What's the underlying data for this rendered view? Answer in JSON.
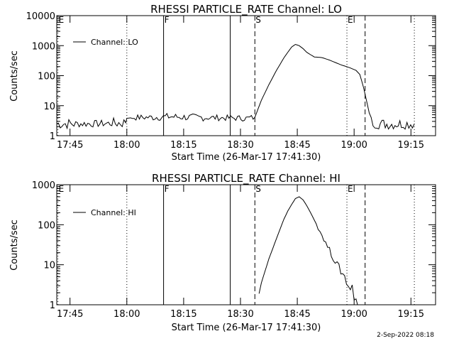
{
  "chart_data": [
    {
      "type": "line",
      "title": "RHESSI PARTICLE_RATE Channel: LO",
      "xlabel": "Start Time (26-Mar-17 17:41:30)",
      "ylabel": "Counts/sec",
      "y_scale": "log",
      "ylim": [
        1,
        10000
      ],
      "y_ticks": [
        "1",
        "10",
        "100",
        "1000",
        "10000"
      ],
      "x_ticks": [
        "17:45",
        "18:00",
        "18:15",
        "18:30",
        "18:45",
        "19:00",
        "19:15"
      ],
      "x_tick_minutes": [
        3.5,
        18.5,
        33.5,
        48.5,
        63.5,
        78.5,
        93.5
      ],
      "xlim_minutes": [
        0,
        100
      ],
      "legend": {
        "label": "Channel: LO",
        "position": "top-left"
      },
      "markers": [
        {
          "label": "E",
          "x": 0.3,
          "style": "dotted"
        },
        {
          "label": "",
          "x": 18.5,
          "style": "dotted"
        },
        {
          "label": "F",
          "x": 28.2,
          "style": "solid"
        },
        {
          "label": "",
          "x": 45.8,
          "style": "solid"
        },
        {
          "label": "S",
          "x": 52.3,
          "style": "dashed"
        },
        {
          "label": "E",
          "x": 76.6,
          "style": "dotted"
        },
        {
          "label": "",
          "x": 81.4,
          "style": "dashed"
        },
        {
          "label": "",
          "x": 94.4,
          "style": "dotted"
        }
      ],
      "series": [
        {
          "name": "Channel: LO",
          "x": [
            0,
            5,
            10,
            15,
            18.2,
            18.5,
            20,
            25,
            30,
            35,
            40,
            45,
            50,
            52.3,
            54,
            56,
            58,
            60,
            62,
            63,
            64,
            65,
            66,
            67,
            68,
            70,
            72,
            74,
            75,
            76,
            77,
            78,
            79,
            80,
            81,
            83,
            85,
            88,
            91,
            94.4
          ],
          "y": [
            2.5,
            2.5,
            2.5,
            2.6,
            2.7,
            3.8,
            4.0,
            4.1,
            4.3,
            4.1,
            4.0,
            3.9,
            3.8,
            4.1,
            15,
            50,
            150,
            400,
            900,
            1100,
            1000,
            800,
            600,
            500,
            420,
            400,
            330,
            260,
            230,
            210,
            190,
            170,
            150,
            110,
            40,
            3.0,
            2.5,
            2.4,
            2.5,
            2.5
          ],
          "noise": [
            0.18,
            0.12,
            0.12,
            0.18,
            0,
            0,
            0.1,
            0.12,
            0.12,
            0.12,
            0.1,
            0.1,
            0.1,
            0,
            0,
            0,
            0,
            0,
            0,
            0,
            0,
            0,
            0,
            0,
            0,
            0,
            0,
            0,
            0,
            0,
            0,
            0,
            0,
            0,
            0,
            0.2,
            0.18,
            0.18,
            0.18,
            0
          ]
        }
      ]
    },
    {
      "type": "line",
      "title": "RHESSI PARTICLE_RATE Channel: HI",
      "xlabel": "Start Time (26-Mar-17 17:41:30)",
      "ylabel": "Counts/sec",
      "y_scale": "log",
      "ylim": [
        1,
        1000
      ],
      "y_ticks": [
        "1",
        "10",
        "100",
        "1000"
      ],
      "x_ticks": [
        "17:45",
        "18:00",
        "18:15",
        "18:30",
        "18:45",
        "19:00",
        "19:15"
      ],
      "x_tick_minutes": [
        3.5,
        18.5,
        33.5,
        48.5,
        63.5,
        78.5,
        93.5
      ],
      "xlim_minutes": [
        0,
        100
      ],
      "legend": {
        "label": "Channel: HI",
        "position": "top-left"
      },
      "markers": [
        {
          "label": "E",
          "x": 0.3,
          "style": "dotted"
        },
        {
          "label": "",
          "x": 18.5,
          "style": "dotted"
        },
        {
          "label": "F",
          "x": 28.2,
          "style": "solid"
        },
        {
          "label": "",
          "x": 45.8,
          "style": "solid"
        },
        {
          "label": "S",
          "x": 52.3,
          "style": "dashed"
        },
        {
          "label": "E",
          "x": 76.6,
          "style": "dotted"
        },
        {
          "label": "",
          "x": 81.4,
          "style": "dashed"
        },
        {
          "label": "",
          "x": 94.4,
          "style": "dotted"
        }
      ],
      "series": [
        {
          "name": "Channel: HI",
          "x": [
            53.4,
            54,
            55,
            56,
            57,
            58,
            59,
            60,
            61,
            62,
            63,
            64,
            65,
            66,
            67,
            68,
            69,
            70,
            71,
            72,
            73,
            74,
            75,
            76,
            76.5,
            77,
            78,
            78.5,
            79,
            79.4
          ],
          "y": [
            1.9,
            3.5,
            7,
            14,
            25,
            45,
            80,
            140,
            220,
            320,
            450,
            500,
            420,
            300,
            200,
            130,
            85,
            55,
            35,
            23,
            15,
            10,
            7,
            5,
            4,
            3,
            2.5,
            1.8,
            1.4,
            1.0
          ],
          "noise": [
            0,
            0,
            0,
            0,
            0,
            0,
            0,
            0,
            0,
            0,
            0,
            0,
            0,
            0,
            0,
            0,
            0.05,
            0.05,
            0.05,
            0.08,
            0.08,
            0.1,
            0.1,
            0.15,
            0.15,
            0.15,
            0.15,
            0.15,
            0,
            0
          ]
        }
      ]
    }
  ],
  "footer": "2-Sep-2022 08:18"
}
